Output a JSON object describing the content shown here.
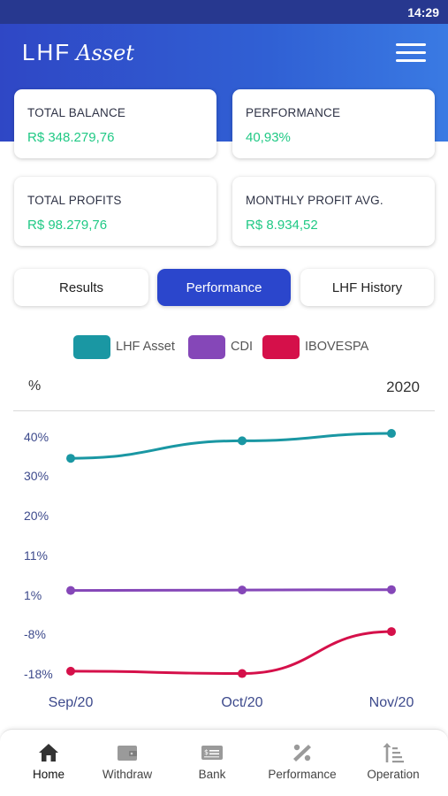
{
  "status_bar": {
    "time": "14:29"
  },
  "header": {
    "logo_main": "LHF",
    "logo_sub": "Asset",
    "menu_icon": "hamburger-menu-icon"
  },
  "cards": {
    "total_balance": {
      "label": "TOTAL BALANCE",
      "value": "R$ 348.279,76"
    },
    "performance": {
      "label": "PERFORMANCE",
      "value": "40,93%"
    },
    "total_profits": {
      "label": "TOTAL PROFITS",
      "value": "R$ 98.279,76"
    },
    "monthly_avg": {
      "label": "MONTHLY PROFIT AVG.",
      "value": "R$ 8.934,52"
    }
  },
  "tabs": [
    {
      "label": "Results",
      "active": false
    },
    {
      "label": "Performance",
      "active": true
    },
    {
      "label": "LHF History",
      "active": false
    }
  ],
  "colors": {
    "accent": "#2b46cc",
    "positive": "#20c985",
    "lhf": "#1a97a3",
    "cdi": "#8547b8",
    "ibovespa": "#d5104a"
  },
  "chart_data": {
    "type": "line",
    "unit_label": "%",
    "year_label": "2020",
    "categories": [
      "Sep/20",
      "Oct/20",
      "Nov/20"
    ],
    "y_ticks": [
      "40%",
      "30%",
      "20%",
      "11%",
      "1%",
      "-8%",
      "-18%"
    ],
    "y_tick_values": [
      40,
      30,
      20,
      11,
      1,
      -8,
      -18
    ],
    "ylim": [
      -18,
      40
    ],
    "series": [
      {
        "name": "LHF Asset",
        "color": "#1a97a3",
        "values": [
          34.5,
          39.0,
          40.9
        ]
      },
      {
        "name": "CDI",
        "color": "#8547b8",
        "values": [
          2.2,
          2.3,
          2.4
        ]
      },
      {
        "name": "IBOVESPA",
        "color": "#d5104a",
        "values": [
          -17.3,
          -17.9,
          -7.4
        ]
      }
    ],
    "grid": false,
    "legend_position": "top"
  },
  "bottom_nav": [
    {
      "label": "Home",
      "icon": "home-icon",
      "active": true
    },
    {
      "label": "Withdraw",
      "icon": "wallet-icon",
      "active": false
    },
    {
      "label": "Bank",
      "icon": "bank-icon",
      "active": false
    },
    {
      "label": "Performance",
      "icon": "percent-icon",
      "active": false
    },
    {
      "label": "Operation",
      "icon": "sort-operation-icon",
      "active": false
    }
  ]
}
